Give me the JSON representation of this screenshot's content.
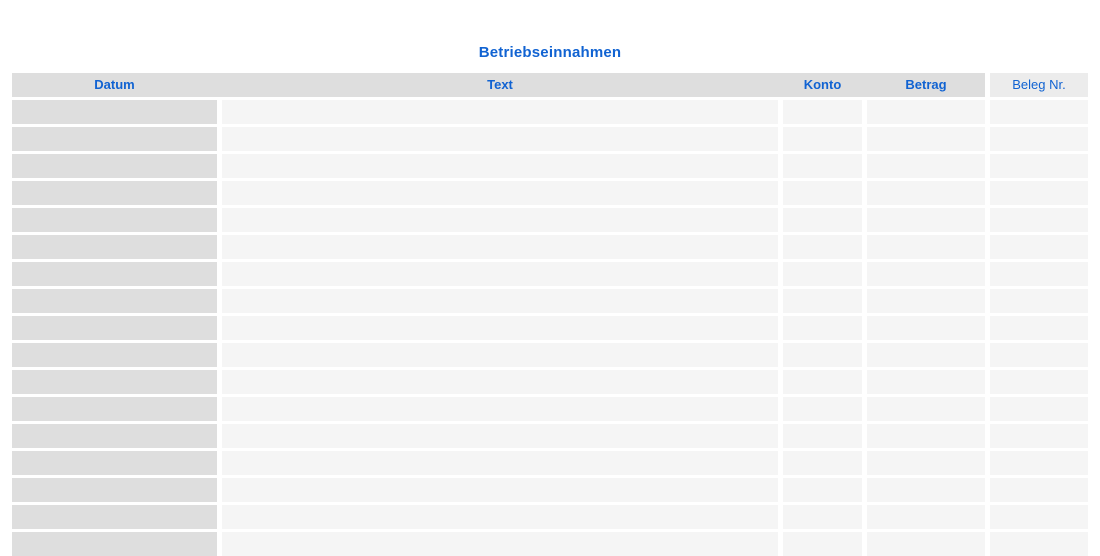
{
  "sheet": {
    "title": "Betriebseinnahmen"
  },
  "table": {
    "columns": [
      {
        "key": "datum",
        "label": "Datum"
      },
      {
        "key": "text",
        "label": "Text"
      },
      {
        "key": "konto",
        "label": "Konto"
      },
      {
        "key": "betrag",
        "label": "Betrag"
      },
      {
        "key": "beleg",
        "label": "Beleg Nr."
      }
    ],
    "visible_row_count": 17,
    "rows": []
  },
  "colors": {
    "accent_blue": "#1163d2",
    "header_gray": "#dedede",
    "beleg_header_gray": "#ececec",
    "datum_cell_gray": "#dedede",
    "cell_gray": "#f5f5f5",
    "background": "#ffffff"
  }
}
